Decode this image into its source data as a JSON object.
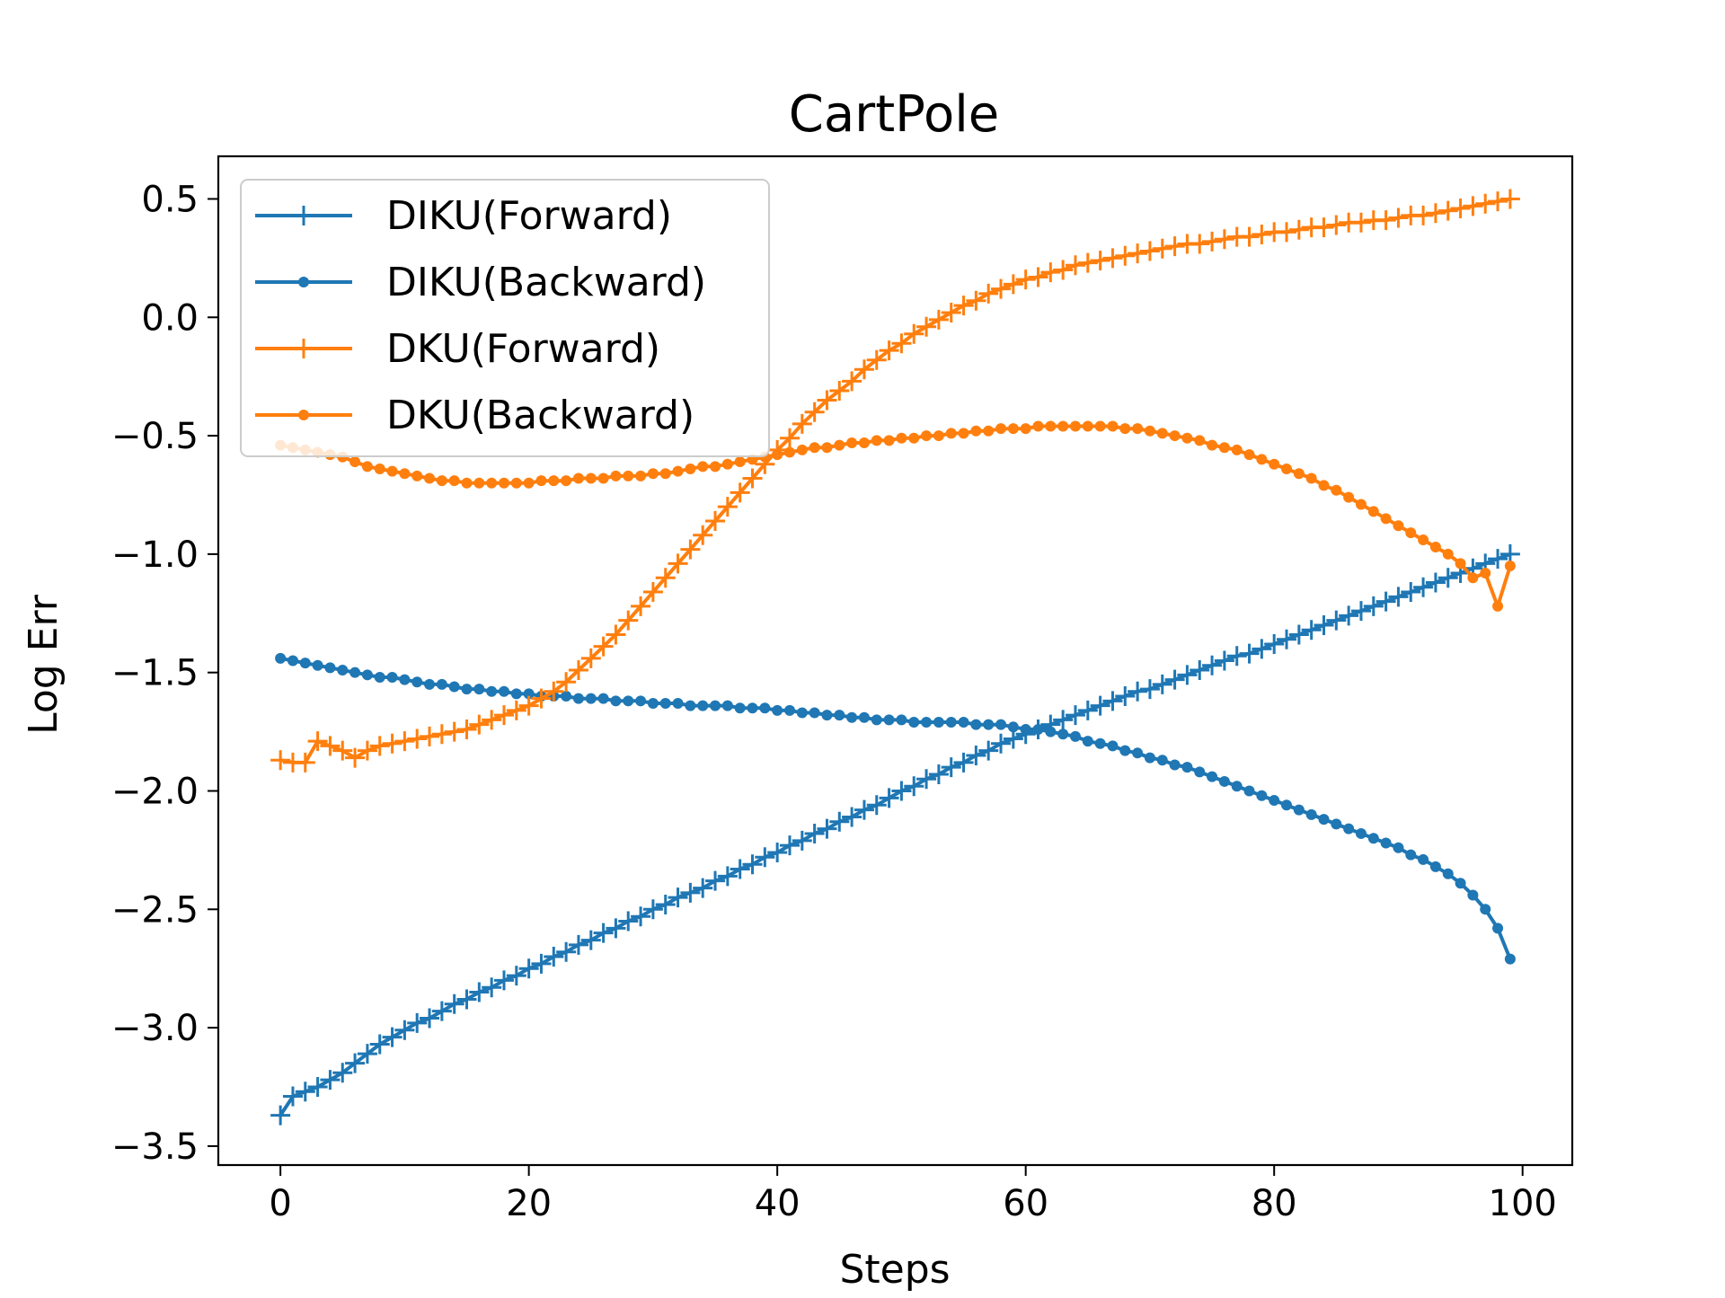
{
  "chart_data": {
    "type": "line",
    "title": "CartPole",
    "xlabel": "Steps",
    "ylabel": "Log Err",
    "xlim": [
      -5,
      104
    ],
    "ylim": [
      -3.58,
      0.68
    ],
    "xticks": [
      0,
      20,
      40,
      60,
      80,
      100
    ],
    "yticks": [
      0.5,
      0.0,
      -0.5,
      -1.0,
      -1.5,
      -2.0,
      -2.5,
      -3.0,
      -3.5
    ],
    "xtick_labels": [
      "0",
      "20",
      "40",
      "60",
      "80",
      "100"
    ],
    "ytick_labels": [
      "0.5",
      "0.0",
      "−0.5",
      "−1.0",
      "−1.5",
      "−2.0",
      "−2.5",
      "−3.0",
      "−3.5"
    ],
    "grid": false,
    "legend_position": "top-left",
    "series": [
      {
        "name": "DIKU(Forward)",
        "color": "#1f77b4",
        "marker": "plus",
        "values": [
          -3.37,
          -3.29,
          -3.27,
          -3.25,
          -3.22,
          -3.19,
          -3.15,
          -3.11,
          -3.07,
          -3.04,
          -3.01,
          -2.98,
          -2.96,
          -2.93,
          -2.9,
          -2.88,
          -2.85,
          -2.83,
          -2.8,
          -2.78,
          -2.75,
          -2.73,
          -2.7,
          -2.68,
          -2.65,
          -2.63,
          -2.6,
          -2.58,
          -2.55,
          -2.53,
          -2.5,
          -2.48,
          -2.45,
          -2.43,
          -2.41,
          -2.38,
          -2.36,
          -2.33,
          -2.31,
          -2.28,
          -2.26,
          -2.23,
          -2.21,
          -2.18,
          -2.16,
          -2.13,
          -2.11,
          -2.08,
          -2.06,
          -2.03,
          -2.0,
          -1.98,
          -1.95,
          -1.93,
          -1.9,
          -1.88,
          -1.85,
          -1.83,
          -1.8,
          -1.78,
          -1.76,
          -1.74,
          -1.72,
          -1.7,
          -1.68,
          -1.66,
          -1.64,
          -1.62,
          -1.6,
          -1.58,
          -1.57,
          -1.55,
          -1.53,
          -1.51,
          -1.49,
          -1.47,
          -1.45,
          -1.43,
          -1.42,
          -1.4,
          -1.38,
          -1.36,
          -1.34,
          -1.32,
          -1.3,
          -1.28,
          -1.26,
          -1.24,
          -1.22,
          -1.2,
          -1.18,
          -1.16,
          -1.14,
          -1.12,
          -1.1,
          -1.08,
          -1.06,
          -1.04,
          -1.02,
          -1.0
        ]
      },
      {
        "name": "DIKU(Backward)",
        "color": "#1f77b4",
        "marker": "dot",
        "values": [
          -1.44,
          -1.45,
          -1.46,
          -1.47,
          -1.48,
          -1.49,
          -1.5,
          -1.51,
          -1.52,
          -1.52,
          -1.53,
          -1.54,
          -1.55,
          -1.55,
          -1.56,
          -1.57,
          -1.57,
          -1.58,
          -1.58,
          -1.59,
          -1.59,
          -1.6,
          -1.6,
          -1.6,
          -1.61,
          -1.61,
          -1.61,
          -1.62,
          -1.62,
          -1.62,
          -1.63,
          -1.63,
          -1.63,
          -1.64,
          -1.64,
          -1.64,
          -1.64,
          -1.65,
          -1.65,
          -1.65,
          -1.66,
          -1.66,
          -1.67,
          -1.67,
          -1.68,
          -1.68,
          -1.69,
          -1.69,
          -1.7,
          -1.7,
          -1.7,
          -1.71,
          -1.71,
          -1.71,
          -1.71,
          -1.71,
          -1.72,
          -1.72,
          -1.72,
          -1.73,
          -1.74,
          -1.74,
          -1.75,
          -1.76,
          -1.77,
          -1.79,
          -1.8,
          -1.81,
          -1.83,
          -1.84,
          -1.86,
          -1.87,
          -1.89,
          -1.9,
          -1.92,
          -1.94,
          -1.96,
          -1.98,
          -2.0,
          -2.02,
          -2.04,
          -2.06,
          -2.08,
          -2.1,
          -2.12,
          -2.14,
          -2.16,
          -2.18,
          -2.2,
          -2.22,
          -2.24,
          -2.27,
          -2.29,
          -2.32,
          -2.35,
          -2.39,
          -2.44,
          -2.5,
          -2.58,
          -2.71
        ]
      },
      {
        "name": "DKU(Forward)",
        "color": "#ff7f0e",
        "marker": "plus",
        "values": [
          -1.87,
          -1.88,
          -1.88,
          -1.79,
          -1.81,
          -1.83,
          -1.86,
          -1.83,
          -1.81,
          -1.8,
          -1.79,
          -1.78,
          -1.77,
          -1.76,
          -1.75,
          -1.74,
          -1.72,
          -1.7,
          -1.68,
          -1.66,
          -1.64,
          -1.61,
          -1.58,
          -1.54,
          -1.49,
          -1.44,
          -1.39,
          -1.34,
          -1.28,
          -1.22,
          -1.16,
          -1.1,
          -1.04,
          -0.98,
          -0.92,
          -0.86,
          -0.8,
          -0.74,
          -0.68,
          -0.62,
          -0.56,
          -0.51,
          -0.45,
          -0.4,
          -0.35,
          -0.31,
          -0.27,
          -0.22,
          -0.18,
          -0.14,
          -0.11,
          -0.07,
          -0.04,
          -0.01,
          0.02,
          0.05,
          0.07,
          0.1,
          0.12,
          0.14,
          0.16,
          0.17,
          0.19,
          0.2,
          0.22,
          0.23,
          0.24,
          0.25,
          0.26,
          0.27,
          0.28,
          0.29,
          0.3,
          0.31,
          0.31,
          0.32,
          0.33,
          0.34,
          0.34,
          0.35,
          0.36,
          0.36,
          0.37,
          0.38,
          0.38,
          0.39,
          0.4,
          0.4,
          0.41,
          0.41,
          0.42,
          0.43,
          0.43,
          0.44,
          0.45,
          0.46,
          0.47,
          0.48,
          0.49,
          0.5
        ]
      },
      {
        "name": "DKU(Backward)",
        "color": "#ff7f0e",
        "marker": "dot",
        "values": [
          -0.54,
          -0.55,
          -0.56,
          -0.57,
          -0.58,
          -0.59,
          -0.61,
          -0.63,
          -0.64,
          -0.65,
          -0.66,
          -0.67,
          -0.68,
          -0.69,
          -0.69,
          -0.7,
          -0.7,
          -0.7,
          -0.7,
          -0.7,
          -0.7,
          -0.69,
          -0.69,
          -0.69,
          -0.68,
          -0.68,
          -0.68,
          -0.67,
          -0.67,
          -0.67,
          -0.66,
          -0.66,
          -0.65,
          -0.64,
          -0.63,
          -0.63,
          -0.62,
          -0.61,
          -0.6,
          -0.59,
          -0.58,
          -0.57,
          -0.56,
          -0.55,
          -0.55,
          -0.54,
          -0.53,
          -0.53,
          -0.52,
          -0.52,
          -0.51,
          -0.51,
          -0.5,
          -0.5,
          -0.49,
          -0.49,
          -0.48,
          -0.48,
          -0.47,
          -0.47,
          -0.47,
          -0.46,
          -0.46,
          -0.46,
          -0.46,
          -0.46,
          -0.46,
          -0.46,
          -0.47,
          -0.47,
          -0.48,
          -0.49,
          -0.5,
          -0.51,
          -0.52,
          -0.54,
          -0.55,
          -0.56,
          -0.58,
          -0.6,
          -0.62,
          -0.64,
          -0.66,
          -0.68,
          -0.71,
          -0.73,
          -0.76,
          -0.79,
          -0.82,
          -0.85,
          -0.88,
          -0.91,
          -0.94,
          -0.97,
          -1.0,
          -1.04,
          -1.1,
          -1.08,
          -1.22,
          -1.05
        ]
      }
    ]
  }
}
